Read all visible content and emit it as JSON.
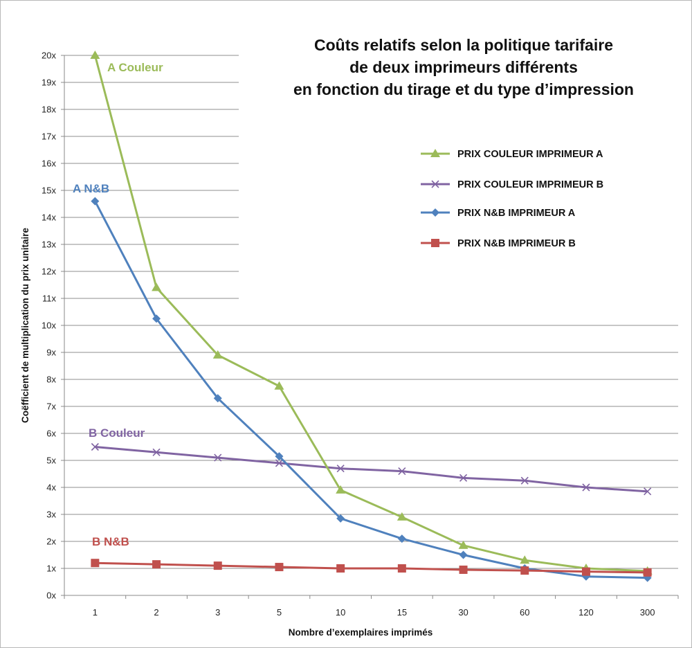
{
  "chart_data": {
    "type": "line",
    "title_lines": [
      "Coûts relatifs selon la politique tarifaire",
      "de deux imprimeurs différents",
      "en fonction du tirage et du type d’impression"
    ],
    "xlabel": "Nombre d’exemplaires imprimés",
    "ylabel": "Coëfficient de multiplication du prix unitaire",
    "categories": [
      "1",
      "2",
      "3",
      "5",
      "10",
      "15",
      "30",
      "60",
      "120",
      "300"
    ],
    "y_ticks": [
      "0x",
      "1x",
      "2x",
      "3x",
      "4x",
      "5x",
      "6x",
      "7x",
      "8x",
      "9x",
      "10x",
      "11x",
      "12x",
      "13x",
      "14x",
      "15x",
      "16x",
      "17x",
      "18x",
      "19x",
      "20x"
    ],
    "ylim": [
      0,
      20
    ],
    "grid": true,
    "legend_position": "top-right",
    "series": [
      {
        "name": "PRIX COULEUR IMPRIMEUR A",
        "color": "#9bbb59",
        "marker": "triangle",
        "values": [
          20,
          11.4,
          8.9,
          7.75,
          3.9,
          2.9,
          1.85,
          1.3,
          1.0,
          0.9
        ]
      },
      {
        "name": "PRIX COULEUR IMPRIMEUR B",
        "color": "#8064a2",
        "marker": "x",
        "values": [
          5.5,
          5.3,
          5.1,
          4.9,
          4.7,
          4.6,
          4.35,
          4.25,
          4.0,
          3.85
        ]
      },
      {
        "name": "PRIX N&B IMPRIMEUR A",
        "color": "#4f81bd",
        "marker": "diamond",
        "values": [
          14.6,
          10.25,
          7.3,
          5.15,
          2.85,
          2.1,
          1.5,
          1.0,
          0.7,
          0.65
        ]
      },
      {
        "name": "PRIX N&B IMPRIMEUR B",
        "color": "#c0504d",
        "marker": "square",
        "values": [
          1.2,
          1.15,
          1.1,
          1.05,
          1.0,
          1.0,
          0.95,
          0.92,
          0.88,
          0.85
        ]
      }
    ],
    "annotations": [
      {
        "text": "A Couleur",
        "series": 0,
        "color": "#9bbb59"
      },
      {
        "text": "A  N&B",
        "series": 2,
        "color": "#4f81bd"
      },
      {
        "text": "B Couleur",
        "series": 1,
        "color": "#8064a2"
      },
      {
        "text": "B  N&B",
        "series": 3,
        "color": "#c0504d"
      }
    ]
  }
}
